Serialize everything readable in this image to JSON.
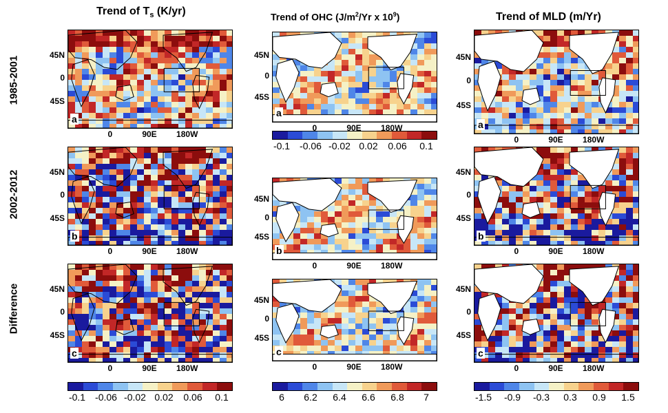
{
  "columns": [
    {
      "title": "Trend of T",
      "sub": "s",
      "unit": " (K/yr)"
    },
    {
      "title": "Trend of OHC (J/m",
      "sup1": "2",
      "mid": "/Yr x 10",
      "sup2": "9",
      "end": ")"
    },
    {
      "title": "Trend of MLD (m/Yr)"
    }
  ],
  "rows": [
    "1985-2001",
    "2002-2012",
    "Difference"
  ],
  "panel_labels": [
    "a",
    "b",
    "c"
  ],
  "lon_ticks": [
    "0",
    "90E",
    "180W"
  ],
  "lat_ticks": [
    "45N",
    "0",
    "45S"
  ],
  "colorbars": [
    {
      "labels": [
        "-0.1",
        "-0.06",
        "-0.02",
        "0.02",
        "0.06",
        "0.1"
      ]
    },
    {
      "labels": [
        "-0.1",
        "-0.06",
        "-0.02",
        "0.02",
        "0.06",
        "0.1"
      ]
    },
    {
      "labels": [
        "6",
        "6.2",
        "6.4",
        "6.6",
        "6.8",
        "7"
      ]
    },
    {
      "labels": [
        "-1.5",
        "-0.9",
        "-0.3",
        "0.3",
        "0.9",
        "1.5"
      ]
    }
  ],
  "colors": [
    "#1a1a9e",
    "#2b4bd6",
    "#4f86e8",
    "#8ec3f2",
    "#c7e6f7",
    "#f5f1c6",
    "#f7d28d",
    "#f09a5a",
    "#e05a3a",
    "#c22727",
    "#8c0d0d"
  ]
}
